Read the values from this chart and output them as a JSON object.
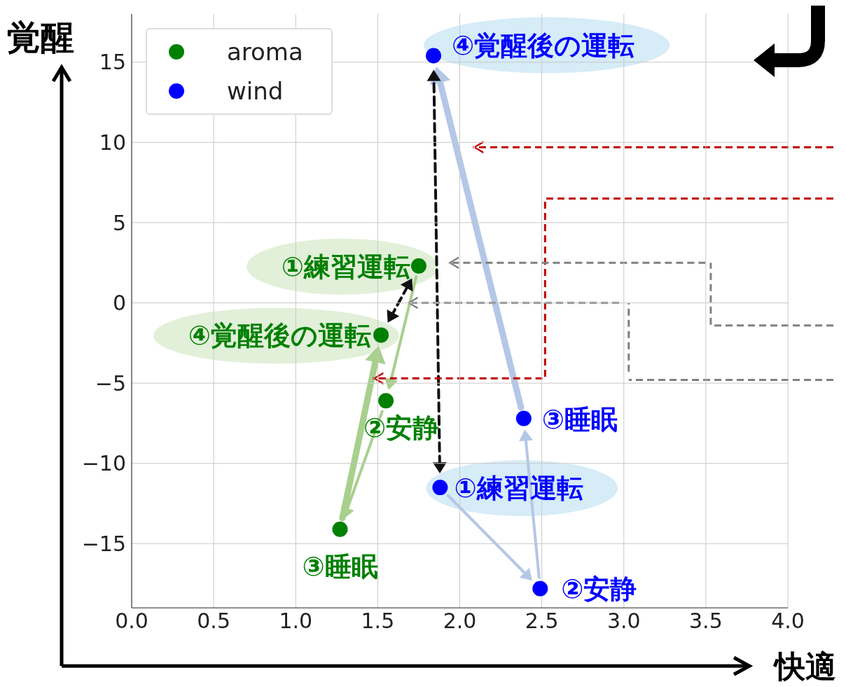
{
  "chart_data": {
    "type": "scatter",
    "xlabel": "快適",
    "ylabel": "覚醒",
    "series": [
      {
        "name": "aroma",
        "color": "#008000",
        "x": [
          1.75,
          1.55,
          1.27,
          1.52
        ],
        "values": [
          2.3,
          -6.1,
          -14.1,
          -2.0
        ]
      },
      {
        "name": "wind",
        "color": "#0000ff",
        "x": [
          1.88,
          2.49,
          2.39,
          1.84
        ],
        "values": [
          -11.5,
          -17.8,
          -7.2,
          15.4
        ]
      }
    ],
    "annotations": [
      {
        "text": "①練習運転",
        "x": 1.75,
        "y": 2.3
      },
      {
        "text": "②安静",
        "x": 1.55,
        "y": -6.1
      },
      {
        "text": "③睡眠",
        "x": 1.27,
        "y": -14.1
      },
      {
        "text": "④覚醒後の運転",
        "x": 1.52,
        "y": -2.0
      },
      {
        "text": "①練習運転",
        "x": 1.88,
        "y": -11.5
      },
      {
        "text": "②安静",
        "x": 2.49,
        "y": -17.8
      },
      {
        "text": "③睡眠",
        "x": 2.39,
        "y": -7.2
      },
      {
        "text": "④覚醒後の運転",
        "x": 1.84,
        "y": 15.4
      }
    ],
    "xlim": [
      0,
      4
    ],
    "ylim": [
      -19,
      18
    ],
    "xticks": [
      {
        "value": 0,
        "label": "0.0"
      },
      {
        "value": 0.5,
        "label": "0.5"
      },
      {
        "value": 1,
        "label": "1.0"
      },
      {
        "value": 1.5,
        "label": "1.5"
      },
      {
        "value": 2,
        "label": "2.0"
      },
      {
        "value": 2.5,
        "label": "2.5"
      },
      {
        "value": 3,
        "label": "3.0"
      },
      {
        "value": 3.5,
        "label": "3.5"
      },
      {
        "value": 4,
        "label": "4.0"
      }
    ],
    "yticks": [
      {
        "value": -15,
        "label": "−15"
      },
      {
        "value": -10,
        "label": "−10"
      },
      {
        "value": -5,
        "label": "−5"
      },
      0,
      5,
      10,
      15
    ],
    "grid": true,
    "legend": "top left",
    "marker": "circle"
  }
}
